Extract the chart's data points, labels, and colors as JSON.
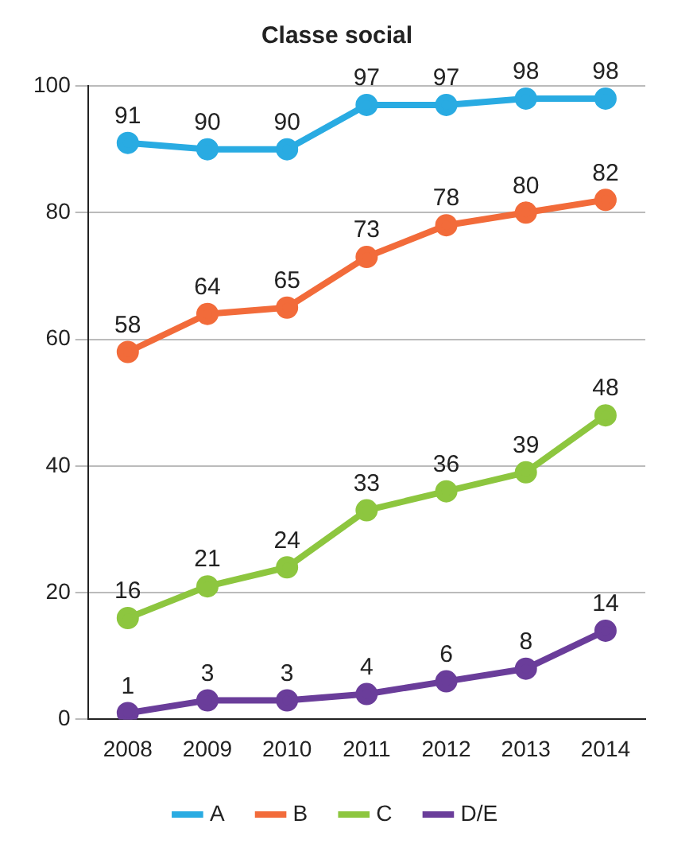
{
  "chart_data": {
    "type": "line",
    "title": "Classe social",
    "categories": [
      "2008",
      "2009",
      "2010",
      "2011",
      "2012",
      "2013",
      "2014"
    ],
    "series": [
      {
        "name": "A",
        "color": "#29abe2",
        "values": [
          91,
          90,
          90,
          97,
          97,
          98,
          98
        ]
      },
      {
        "name": "B",
        "color": "#f26b3a",
        "values": [
          58,
          64,
          65,
          73,
          78,
          80,
          82
        ]
      },
      {
        "name": "C",
        "color": "#8dc63f",
        "values": [
          16,
          21,
          24,
          33,
          36,
          39,
          48
        ]
      },
      {
        "name": "D/E",
        "color": "#6a3d9a",
        "values": [
          1,
          3,
          3,
          4,
          6,
          8,
          14
        ]
      }
    ],
    "ylim": [
      0,
      100
    ],
    "yticks": [
      0,
      20,
      40,
      60,
      80,
      100
    ],
    "grid": "y",
    "legend": "bottom",
    "marker": "circle",
    "line_style": "solid",
    "data_labels": true
  }
}
